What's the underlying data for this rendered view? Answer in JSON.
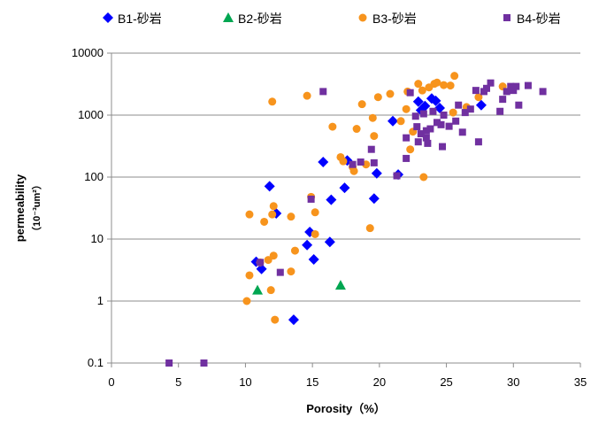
{
  "chart_data": {
    "type": "scatter",
    "xlabel": "Porosity（%）",
    "ylabel": "permeability",
    "ylabel_unit": "（10⁻³um²）",
    "xlim": [
      0,
      35
    ],
    "ylim": [
      0.1,
      10000
    ],
    "y_scale": "log",
    "x_ticks": [
      "0",
      "5",
      "10",
      "15",
      "20",
      "25",
      "30",
      "35"
    ],
    "y_ticks": [
      "0.1",
      "1",
      "10",
      "100",
      "1000",
      "10000"
    ],
    "grid": "horizontal",
    "legend_position": "top",
    "series": [
      {
        "name": "B1-砂岩",
        "marker": "diamond",
        "color": "#0000FF",
        "points": [
          [
            10.8,
            4.3
          ],
          [
            11.2,
            3.3
          ],
          [
            11.8,
            71
          ],
          [
            12.3,
            26
          ],
          [
            13.6,
            0.5
          ],
          [
            14.6,
            8
          ],
          [
            14.8,
            13
          ],
          [
            15.1,
            4.7
          ],
          [
            15.8,
            175
          ],
          [
            16.3,
            9
          ],
          [
            16.4,
            43
          ],
          [
            17.4,
            67
          ],
          [
            17.6,
            185
          ],
          [
            19.6,
            45
          ],
          [
            19.8,
            115
          ],
          [
            21.0,
            800
          ],
          [
            21.4,
            110
          ],
          [
            22.9,
            1650
          ],
          [
            23.1,
            1200
          ],
          [
            23.4,
            1400
          ],
          [
            23.9,
            1850
          ],
          [
            24.2,
            1700
          ],
          [
            24.5,
            1300
          ],
          [
            27.6,
            1450
          ]
        ]
      },
      {
        "name": "B2-砂岩",
        "marker": "triangle",
        "color": "#00A651",
        "points": [
          [
            10.9,
            1.5
          ],
          [
            17.1,
            1.8
          ]
        ]
      },
      {
        "name": "B3-砂岩",
        "marker": "circle",
        "color": "#F7941D",
        "points": [
          [
            10.1,
            1.0
          ],
          [
            10.3,
            2.6
          ],
          [
            10.3,
            25
          ],
          [
            11.1,
            4.2
          ],
          [
            11.4,
            19
          ],
          [
            11.7,
            4.6
          ],
          [
            11.9,
            1.5
          ],
          [
            12.0,
            1650
          ],
          [
            12.0,
            25
          ],
          [
            12.1,
            34
          ],
          [
            12.1,
            5.4
          ],
          [
            12.2,
            0.5
          ],
          [
            13.4,
            3.0
          ],
          [
            13.4,
            23
          ],
          [
            13.7,
            6.5
          ],
          [
            14.6,
            2050
          ],
          [
            14.9,
            48
          ],
          [
            15.2,
            27
          ],
          [
            15.2,
            12
          ],
          [
            16.5,
            650
          ],
          [
            17.1,
            210
          ],
          [
            17.3,
            180
          ],
          [
            18.0,
            145
          ],
          [
            18.1,
            125
          ],
          [
            18.3,
            600
          ],
          [
            18.7,
            1500
          ],
          [
            19.0,
            160
          ],
          [
            19.3,
            15
          ],
          [
            19.5,
            900
          ],
          [
            19.6,
            460
          ],
          [
            19.9,
            1950
          ],
          [
            20.8,
            2200
          ],
          [
            21.6,
            800
          ],
          [
            22.0,
            1250
          ],
          [
            22.1,
            2400
          ],
          [
            22.3,
            280
          ],
          [
            22.5,
            540
          ],
          [
            22.9,
            3200
          ],
          [
            23.2,
            2500
          ],
          [
            23.3,
            100
          ],
          [
            23.7,
            2800
          ],
          [
            24.1,
            3200
          ],
          [
            24.3,
            3350
          ],
          [
            24.8,
            3050
          ],
          [
            25.3,
            3000
          ],
          [
            25.5,
            1100
          ],
          [
            25.6,
            4300
          ],
          [
            26.5,
            1350
          ],
          [
            27.4,
            1950
          ],
          [
            29.2,
            2900
          ]
        ]
      },
      {
        "name": "B4-砂岩",
        "marker": "square",
        "color": "#7030A0",
        "points": [
          [
            4.3,
            0.1
          ],
          [
            6.9,
            0.1
          ],
          [
            11.1,
            4.2
          ],
          [
            12.6,
            2.9
          ],
          [
            14.9,
            44
          ],
          [
            15.8,
            2400
          ],
          [
            18.0,
            160
          ],
          [
            18.6,
            175
          ],
          [
            19.4,
            280
          ],
          [
            19.6,
            170
          ],
          [
            21.3,
            105
          ],
          [
            22.0,
            430
          ],
          [
            22.0,
            200
          ],
          [
            22.3,
            2300
          ],
          [
            22.7,
            960
          ],
          [
            22.8,
            650
          ],
          [
            22.9,
            370
          ],
          [
            23.1,
            500
          ],
          [
            23.3,
            1050
          ],
          [
            23.5,
            560
          ],
          [
            23.5,
            430
          ],
          [
            23.6,
            350
          ],
          [
            23.8,
            600
          ],
          [
            24.0,
            1150
          ],
          [
            24.3,
            760
          ],
          [
            24.6,
            700
          ],
          [
            24.7,
            310
          ],
          [
            24.8,
            1000
          ],
          [
            25.2,
            660
          ],
          [
            25.7,
            800
          ],
          [
            25.9,
            1450
          ],
          [
            26.2,
            530
          ],
          [
            26.4,
            1100
          ],
          [
            26.8,
            1250
          ],
          [
            27.2,
            2500
          ],
          [
            27.4,
            370
          ],
          [
            27.8,
            2400
          ],
          [
            28.0,
            2700
          ],
          [
            28.3,
            3300
          ],
          [
            29.0,
            1150
          ],
          [
            29.2,
            1800
          ],
          [
            29.5,
            2400
          ],
          [
            29.8,
            2900
          ],
          [
            30.0,
            2500
          ],
          [
            30.2,
            2900
          ],
          [
            30.4,
            1450
          ],
          [
            31.1,
            3000
          ],
          [
            32.2,
            2400
          ]
        ]
      }
    ]
  }
}
